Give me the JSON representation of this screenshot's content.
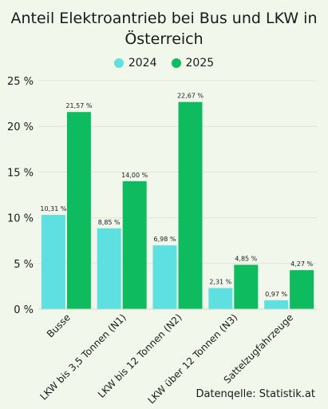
{
  "chart_data": {
    "type": "bar",
    "title": "Anteil Elektroantrieb bei Bus und LKW in Österreich",
    "xlabel": "",
    "ylabel": "",
    "categories": [
      "Busse",
      "LKW bis 3,5 Tonnen (N1)",
      "LKW bis 12 Tonnen (N2)",
      "LKW über 12 Tonnen (N3)",
      "Sattelzugfahrzeuge"
    ],
    "series": [
      {
        "name": "2024",
        "values": [
          10.31,
          8.85,
          6.98,
          2.31,
          0.97
        ],
        "labels": [
          "10,31 %",
          "8,85 %",
          "6,98 %",
          "2,31 %",
          "0,97 %"
        ],
        "color": "#5ee0e0"
      },
      {
        "name": "2025",
        "values": [
          21.57,
          14.0,
          22.67,
          4.85,
          4.27
        ],
        "labels": [
          "21,57 %",
          "14,00 %",
          "22,67 %",
          "4,85 %",
          "4,27 %"
        ],
        "color": "#0fbb5f"
      }
    ],
    "ylim": [
      0,
      25
    ],
    "yticks": [
      0,
      5,
      10,
      15,
      20,
      25
    ],
    "ytick_labels": [
      "0 %",
      "5 %",
      "10 %",
      "15 %",
      "20 %",
      "25 %"
    ],
    "grid": true,
    "legend_position": "top-center"
  },
  "source": "Datenqelle: Statistik.at"
}
